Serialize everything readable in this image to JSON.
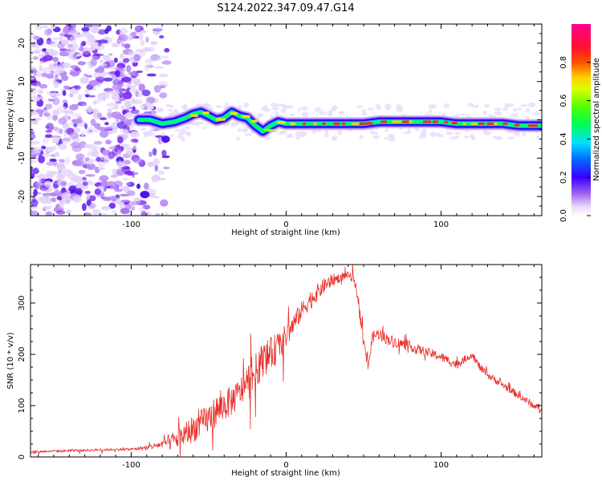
{
  "title": "S124.2022.347.09.47.G14",
  "chart_data": [
    {
      "type": "heatmap",
      "xlabel": "Height of straight line (km)",
      "ylabel": "Frequency (Hz)",
      "xlim": [
        -165,
        165
      ],
      "ylim": [
        -25,
        25
      ],
      "x_ticks": [
        -100,
        0,
        100
      ],
      "y_ticks": [
        -20,
        -10,
        0,
        10,
        20
      ],
      "colorbar": {
        "label": "Normalized spectral amplitude",
        "range": [
          0,
          1
        ],
        "ticks": [
          0.0,
          0.2,
          0.4,
          0.6,
          0.8
        ],
        "tick_labels": [
          "0.0",
          "0.2",
          "0.4",
          "0.6",
          "0.8"
        ]
      },
      "noise_region_x": [
        -165,
        -85
      ],
      "ridge": {
        "x": [
          -95,
          -88,
          -80,
          -72,
          -65,
          -60,
          -55,
          -50,
          -45,
          -40,
          -35,
          -30,
          -25,
          -20,
          -15,
          -10,
          -5,
          0,
          10,
          20,
          30,
          40,
          50,
          60,
          70,
          80,
          90,
          100,
          110,
          120,
          130,
          140,
          150,
          160,
          165
        ],
        "frequency": [
          0,
          0,
          -1,
          -0.5,
          0.5,
          1.5,
          2,
          1,
          0,
          0.5,
          2,
          1,
          0.5,
          -1.5,
          -3,
          -1.5,
          -0.5,
          -1,
          -1,
          -1,
          -1,
          -1,
          -1,
          -0.5,
          -0.5,
          -0.5,
          -0.5,
          -0.5,
          -1,
          -1,
          -1,
          -1,
          -1.5,
          -1.5,
          -1.5
        ]
      }
    },
    {
      "type": "line",
      "xlabel": "Height of straight line (km)",
      "ylabel": "SNR (10 * v/v)",
      "xlim": [
        -165,
        165
      ],
      "ylim": [
        0,
        375
      ],
      "x_ticks": [
        -100,
        0,
        100
      ],
      "y_ticks": [
        0,
        100,
        200,
        300
      ],
      "series": [
        {
          "name": "SNR",
          "color": "#e8302a",
          "x": [
            -165,
            -140,
            -120,
            -100,
            -90,
            -80,
            -75,
            -70,
            -65,
            -60,
            -55,
            -50,
            -45,
            -40,
            -35,
            -30,
            -25,
            -20,
            -15,
            -10,
            -5,
            0,
            5,
            10,
            15,
            20,
            25,
            30,
            35,
            40,
            44,
            47,
            50,
            53,
            56,
            60,
            65,
            70,
            80,
            90,
            100,
            110,
            115,
            120,
            125,
            130,
            140,
            150,
            160,
            165
          ],
          "values": [
            10,
            12,
            14,
            15,
            18,
            25,
            30,
            35,
            45,
            55,
            65,
            75,
            90,
            100,
            110,
            125,
            145,
            165,
            190,
            200,
            215,
            235,
            260,
            285,
            305,
            320,
            335,
            345,
            350,
            355,
            345,
            300,
            220,
            180,
            235,
            240,
            230,
            225,
            215,
            205,
            195,
            180,
            190,
            200,
            175,
            160,
            140,
            120,
            100,
            95
          ],
          "noise": [
            4,
            4,
            4,
            4,
            8,
            12,
            28,
            30,
            40,
            45,
            45,
            50,
            50,
            50,
            50,
            45,
            60,
            60,
            55,
            55,
            50,
            40,
            35,
            30,
            30,
            28,
            25,
            20,
            15,
            10,
            15,
            15,
            20,
            25,
            20,
            20,
            18,
            18,
            15,
            15,
            15,
            15,
            12,
            12,
            12,
            12,
            12,
            12,
            12,
            12
          ]
        }
      ]
    }
  ]
}
